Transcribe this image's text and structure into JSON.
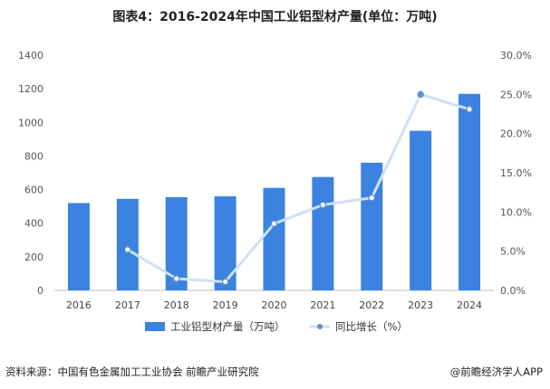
{
  "title": "图表4：2016-2024年中国工业铝型材产量(单位：万吨)",
  "source": "资料来源：中国有色金属加工工业协会 前瞻产业研究院",
  "brand": "@前瞻经济学人APP",
  "colors": {
    "bar": "#3c82e0",
    "line": "#cfe0f6",
    "marker": "#5b8fd6",
    "axis": "#bfbfbf",
    "grid": "#e6e6e6"
  },
  "chart_data": {
    "type": "bar",
    "categories": [
      "2016",
      "2017",
      "2018",
      "2019",
      "2020",
      "2021",
      "2022",
      "2023",
      "2024"
    ],
    "series": [
      {
        "name": "工业铝型材产量（万吨）",
        "type": "bar",
        "axis": "left",
        "values": [
          520,
          545,
          555,
          560,
          610,
          675,
          760,
          950,
          1170
        ]
      },
      {
        "name": "同比增长（%）",
        "type": "line",
        "axis": "right",
        "values": [
          null,
          5.2,
          1.5,
          1.1,
          8.5,
          10.9,
          11.8,
          25.0,
          23.1
        ]
      }
    ],
    "y_left": {
      "range": [
        0,
        1400
      ],
      "ticks": [
        "0",
        "200",
        "400",
        "600",
        "800",
        "1000",
        "1200",
        "1400"
      ]
    },
    "y_right": {
      "range": [
        0,
        30
      ],
      "ticks": [
        "0.0%",
        "5.0%",
        "10.0%",
        "15.0%",
        "20.0%",
        "25.0%",
        "30.0%"
      ]
    },
    "grid": false,
    "legend": "bottom"
  }
}
